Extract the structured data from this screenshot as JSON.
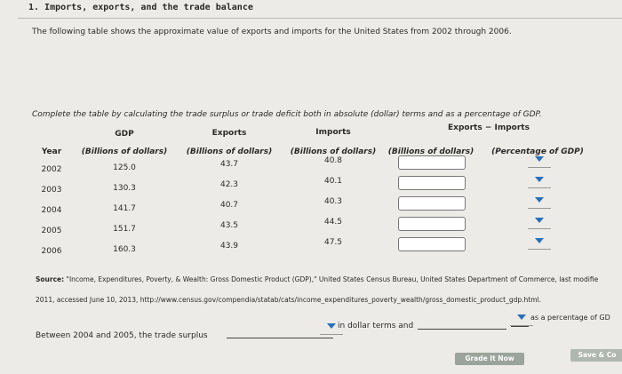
{
  "header": {
    "title": "1. Imports, exports, and the trade balance"
  },
  "intro": "The following table shows the approximate value of exports and imports for the United States from 2002 through 2006.",
  "instruction": "Complete the table by calculating the trade surplus or trade deficit both in absolute (dollar) terms and as a percentage of GDP.",
  "table": {
    "group_header": "Exports − Imports",
    "columns": [
      {
        "title": "Year"
      },
      {
        "title": "GDP",
        "subtitle": "(Billions of dollars)"
      },
      {
        "title": "Exports",
        "subtitle": "(Billions of dollars)"
      },
      {
        "title": "Imports",
        "subtitle": "(Billions of dollars)"
      },
      {
        "subtitle": "(Billions of dollars)"
      },
      {
        "subtitle": "(Percentage of GDP)"
      }
    ],
    "rows": [
      [
        "2002",
        "125.0",
        "43.7",
        "40.8"
      ],
      [
        "2003",
        "130.3",
        "42.3",
        "40.1"
      ],
      [
        "2004",
        "141.7",
        "40.7",
        "40.3"
      ],
      [
        "2005",
        "151.7",
        "43.5",
        "44.5"
      ],
      [
        "2006",
        "160.3",
        "43.9",
        "47.5"
      ]
    ]
  },
  "source": {
    "label": "Source:",
    "lines": [
      "\"Income, Expenditures, Poverty, & Wealth: Gross Domestic Product (GDP),\" United States Census Bureau, United States Department of Commerce, last modifie",
      "2011, accessed June 10, 2013, http://www.census.gov/compendia/statab/cats/income_expenditures_poverty_wealth/gross_domestic_product_gdp.html."
    ]
  },
  "question": {
    "before": "Between 2004 and 2005, the trade surplus",
    "middle": "in dollar terms and",
    "after": "as a percentage of GD"
  },
  "buttons": {
    "grade": "Grade It Now",
    "save": "Save & Co"
  }
}
